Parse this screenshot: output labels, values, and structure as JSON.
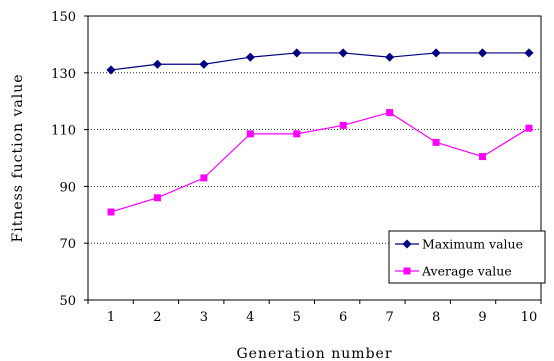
{
  "chart_data": {
    "type": "line",
    "x": [
      1,
      2,
      3,
      4,
      5,
      6,
      7,
      8,
      9,
      10
    ],
    "xlabel": "Generation number",
    "ylabel": "Fitness fuction value",
    "ylim": [
      50,
      150
    ],
    "yticks": [
      50,
      70,
      90,
      110,
      130,
      150
    ],
    "grid": "horizontal dotted",
    "legend_position": "bottom-right",
    "series": [
      {
        "name": "Maximum value",
        "color": "#000080",
        "marker": "diamond",
        "values": [
          131,
          133,
          133,
          135.5,
          137,
          137,
          135.5,
          137,
          137,
          137
        ]
      },
      {
        "name": "Average value",
        "color": "#FF00FF",
        "marker": "square",
        "values": [
          81,
          86,
          93,
          108.5,
          108.5,
          111.5,
          116,
          105.5,
          100.5,
          110.5
        ]
      }
    ]
  }
}
